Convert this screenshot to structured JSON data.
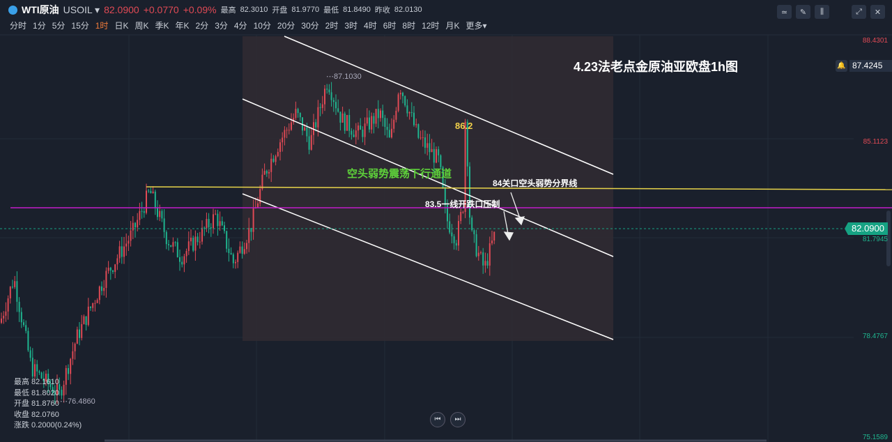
{
  "header": {
    "name": "WTI原油",
    "code": "USOIL",
    "price": "82.0900",
    "change": "+0.0770",
    "change_pct": "+0.09%",
    "high_label": "最高",
    "high": "82.3010",
    "open_label": "开盘",
    "open": "81.9770",
    "low_label": "最低",
    "low": "81.8490",
    "prev_label": "昨收",
    "prev": "82.0130"
  },
  "timeframes": [
    "分时",
    "1分",
    "5分",
    "15分",
    "1时",
    "日K",
    "周K",
    "季K",
    "年K",
    "2分",
    "3分",
    "4分",
    "10分",
    "20分",
    "30分",
    "2时",
    "3时",
    "4时",
    "6时",
    "8时",
    "12时",
    "月K",
    "更多▾"
  ],
  "active_timeframe": "1时",
  "toolbar": [
    "indicator-icon",
    "draw-icon",
    "candle-type-icon",
    "expand-icon",
    "close-icon"
  ],
  "price_axis": {
    "p1": "88.4301",
    "p2": "85.1123",
    "p3": "81.7945",
    "p4": "78.4767",
    "p5": "75.1589"
  },
  "alert_price": "87.4245",
  "current_price": "82.0900",
  "chart_title": "4.23法老点金原油亚欧盘1h图",
  "annotations": {
    "high_mark": "87.1030",
    "low_mark": "76.4860",
    "peak": "86.2",
    "channel": "空头弱势震荡下行通道",
    "line84": "84关口空头弱势分界线",
    "line835": "83.5一线开跌口压制"
  },
  "ohlc": {
    "high": "最高 82.1610",
    "low": "最低 81.8020",
    "open": "开盘 81.8760",
    "close": "收盘 82.0760",
    "chg": "涨跌 0.2000(0.24%)"
  },
  "colors": {
    "up": "#e04a55",
    "down": "#1fb58f",
    "channel_line": "#ffffff",
    "line84": "#e8d44a",
    "line835": "#c21cc9"
  }
}
